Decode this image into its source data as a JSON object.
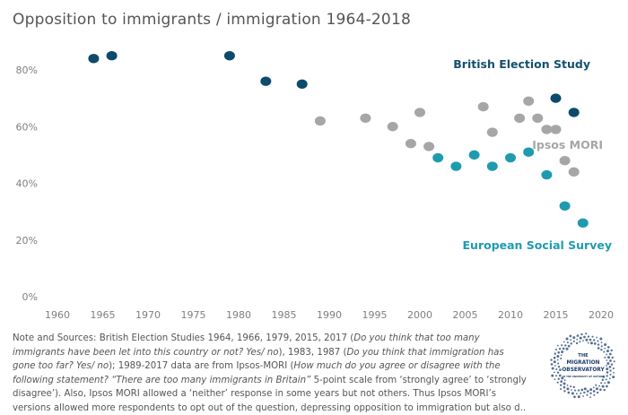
{
  "chart_data": {
    "type": "scatter",
    "title": "Opposition to immigrants / immigration 1964-2018",
    "xlabel": "",
    "ylabel": "",
    "xlim": [
      1958,
      2022
    ],
    "ylim": [
      0,
      1
    ],
    "x_ticks": [
      1960,
      1965,
      1970,
      1975,
      1980,
      1985,
      1990,
      1995,
      2000,
      2005,
      2010,
      2015,
      2020
    ],
    "y_ticks": [
      0,
      0.2,
      0.4,
      0.6,
      0.8
    ],
    "y_tick_labels": [
      "0%",
      "20%",
      "40%",
      "60%",
      "80%"
    ],
    "grid": false,
    "series": [
      {
        "name": "British Election Study",
        "color": "#0d4a6b",
        "label_color": "#14506f",
        "x": [
          1964,
          1966,
          1979,
          1983,
          1987,
          2015,
          2017
        ],
        "y": [
          0.84,
          0.85,
          0.85,
          0.76,
          0.75,
          0.7,
          0.65
        ]
      },
      {
        "name": "Ipsos MORI",
        "color": "#a6a6a6",
        "label_color": "#a6a6a6",
        "x": [
          1989,
          1994,
          1997,
          1999,
          2000,
          2001,
          2007,
          2008,
          2011,
          2012,
          2013,
          2014,
          2015,
          2016,
          2017
        ],
        "y": [
          0.62,
          0.63,
          0.6,
          0.54,
          0.65,
          0.53,
          0.67,
          0.58,
          0.63,
          0.69,
          0.63,
          0.59,
          0.59,
          0.48,
          0.44
        ]
      },
      {
        "name": "European Social Survey",
        "color": "#1f9bb0",
        "label_color": "#1f9bb0",
        "x": [
          2002,
          2004,
          2006,
          2008,
          2010,
          2012,
          2014,
          2016,
          2018
        ],
        "y": [
          0.49,
          0.46,
          0.5,
          0.46,
          0.49,
          0.51,
          0.43,
          0.32,
          0.26
        ]
      }
    ]
  },
  "note": {
    "lines": [
      [
        {
          "t": "Note and Sources: British Election Studies 1964, 1966, 1979, 2015, 2017 ("
        },
        {
          "t": "Do you think that too many",
          "i": true
        }
      ],
      [
        {
          "t": "immigrants have been let into this country or not? Yes/ no",
          "i": true
        },
        {
          "t": "), 1983, 1987 ("
        },
        {
          "t": "Do you think that immigration has",
          "i": true
        }
      ],
      [
        {
          "t": "gone too far? Yes/ no",
          "i": true
        },
        {
          "t": "); 1989-2017 data are from Ipsos-MORI ("
        },
        {
          "t": "How much do you agree or disagree with the",
          "i": true
        }
      ],
      [
        {
          "t": "following statement? “There are too many immigrants in Britain”",
          "i": true
        },
        {
          "t": " 5-point scale from ‘strongly agree’ to ‘strongly"
        }
      ],
      [
        {
          "t": "disagree’). Also, Ipsos MORI allowed a ‘neither’ response in some years but not others. Thus Ipsos MORI’s"
        }
      ],
      [
        {
          "t": "versions allowed more respondents to opt out of the question, depressing opposition to immigration but also d.."
        }
      ]
    ]
  },
  "logo": {
    "lines": [
      "THE",
      "MIGRATION",
      "OBSERVATORY",
      "AT THE UNIVERSITY OF OXFORD"
    ],
    "color": "#1d3d6e"
  }
}
